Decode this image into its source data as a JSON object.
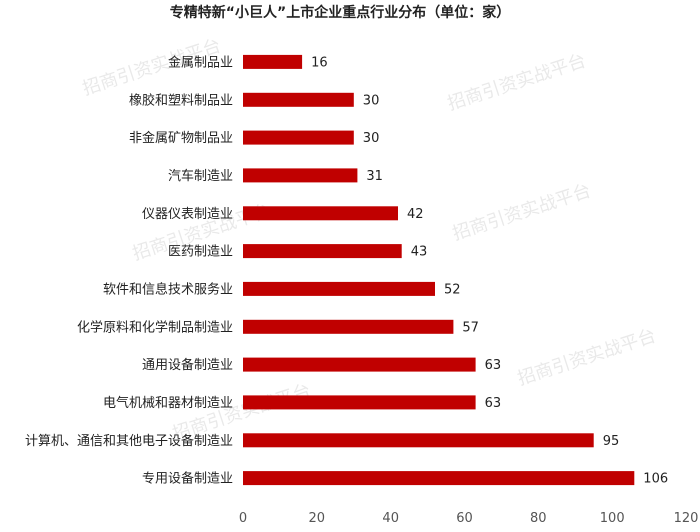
{
  "chart_data": {
    "type": "bar",
    "orientation": "horizontal",
    "title": "专精特新“小巨人”上市企业重点行业分布（单位：家）",
    "categories": [
      "金属制品业",
      "橡胶和塑料制品业",
      "非金属矿物制品业",
      "汽车制造业",
      "仪器仪表制造业",
      "医药制造业",
      "软件和信息技术服务业",
      "化学原料和化学制品制造业",
      "通用设备制造业",
      "电气机械和器材制造业",
      "计算机、通信和其他电子设备制造业",
      "专用设备制造业"
    ],
    "values": [
      16,
      30,
      30,
      31,
      42,
      43,
      52,
      57,
      63,
      63,
      95,
      106
    ],
    "xlim": [
      0,
      120
    ],
    "xticks": [
      "0",
      "20",
      "40",
      "60",
      "80",
      "100",
      "120"
    ],
    "bar_color": "#c00000",
    "grid": false,
    "legend": "none"
  },
  "watermark_text": "招商引资实战平台"
}
